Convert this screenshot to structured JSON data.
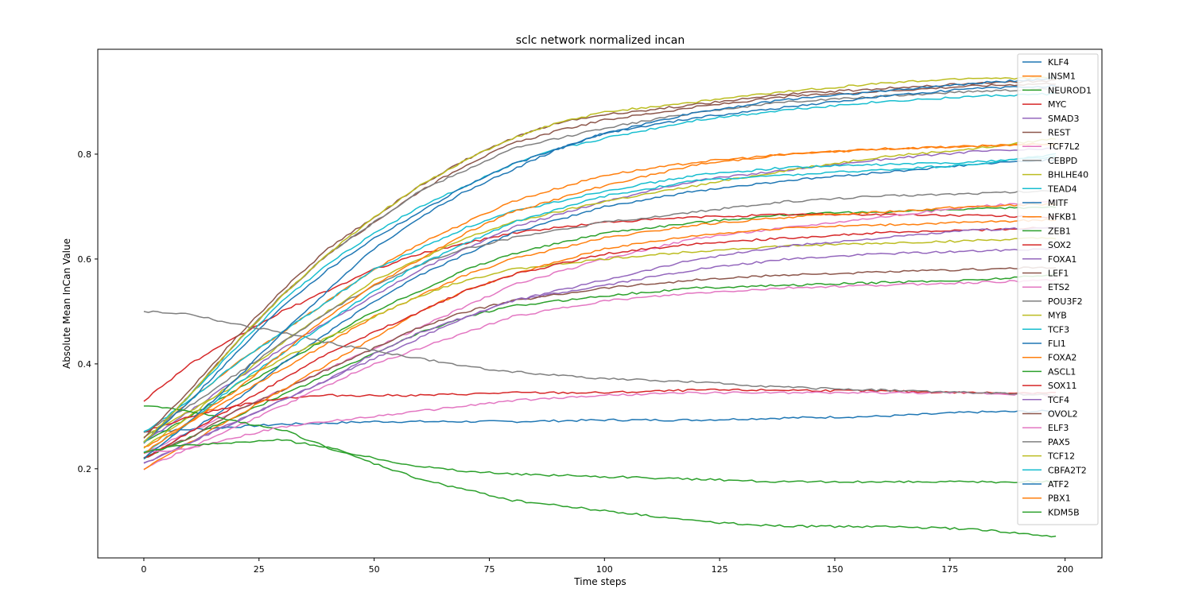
{
  "chart_data": {
    "type": "line",
    "title": "sclc network normalized incan",
    "xlabel": "Time steps",
    "ylabel": "Absolute Mean InCan Value",
    "xlim": [
      -10,
      208
    ],
    "ylim": [
      0.03,
      1.0
    ],
    "xticks": [
      0,
      25,
      50,
      75,
      100,
      125,
      150,
      175,
      200
    ],
    "yticks": [
      0.2,
      0.4,
      0.6,
      0.8
    ],
    "grid": false,
    "legend_position": "top-right",
    "series": [
      {
        "name": "KLF4",
        "color": "#1f77b4",
        "x": [
          0,
          10,
          20,
          30,
          40,
          50,
          60,
          80,
          100,
          120,
          140,
          160,
          180,
          198
        ],
        "values": [
          0.27,
          0.275,
          0.28,
          0.285,
          0.287,
          0.29,
          0.29,
          0.29,
          0.293,
          0.293,
          0.297,
          0.3,
          0.308,
          0.31
        ]
      },
      {
        "name": "INSM1",
        "color": "#ff7f0e",
        "x": [
          0,
          10,
          20,
          30,
          40,
          50,
          60,
          70,
          80,
          100,
          120,
          140,
          160,
          180,
          198
        ],
        "values": [
          0.25,
          0.33,
          0.4,
          0.46,
          0.52,
          0.58,
          0.63,
          0.67,
          0.71,
          0.76,
          0.785,
          0.8,
          0.81,
          0.815,
          0.82
        ]
      },
      {
        "name": "NEUROD1",
        "color": "#2ca02c",
        "x": [
          0,
          10,
          20,
          30,
          40,
          50,
          60,
          70,
          80,
          100,
          120,
          140,
          160,
          180,
          198
        ],
        "values": [
          0.25,
          0.3,
          0.35,
          0.4,
          0.45,
          0.5,
          0.54,
          0.58,
          0.61,
          0.65,
          0.67,
          0.685,
          0.69,
          0.695,
          0.7
        ]
      },
      {
        "name": "MYC",
        "color": "#d62728",
        "x": [
          0,
          10,
          20,
          30,
          40,
          50,
          60,
          70,
          80,
          100,
          120,
          140,
          160,
          180,
          198
        ],
        "values": [
          0.33,
          0.4,
          0.45,
          0.5,
          0.54,
          0.58,
          0.61,
          0.63,
          0.65,
          0.67,
          0.68,
          0.685,
          0.685,
          0.683,
          0.68
        ]
      },
      {
        "name": "SMAD3",
        "color": "#9467bd",
        "x": [
          0,
          10,
          20,
          30,
          40,
          50,
          60,
          70,
          80,
          100,
          120,
          140,
          160,
          180,
          198
        ],
        "values": [
          0.25,
          0.31,
          0.37,
          0.43,
          0.48,
          0.53,
          0.58,
          0.62,
          0.66,
          0.71,
          0.75,
          0.77,
          0.79,
          0.805,
          0.81
        ]
      },
      {
        "name": "REST",
        "color": "#8c564b",
        "x": [
          0,
          10,
          20,
          30,
          40,
          50,
          60,
          70,
          80,
          90,
          100,
          120,
          140,
          160,
          180,
          198
        ],
        "values": [
          0.25,
          0.34,
          0.44,
          0.53,
          0.61,
          0.67,
          0.73,
          0.78,
          0.82,
          0.845,
          0.865,
          0.89,
          0.91,
          0.92,
          0.93,
          0.935
        ]
      },
      {
        "name": "TCF7L2",
        "color": "#e377c2",
        "x": [
          0,
          10,
          20,
          30,
          40,
          50,
          60,
          70,
          80,
          100,
          120,
          140,
          160,
          180,
          198
        ],
        "values": [
          0.23,
          0.27,
          0.31,
          0.35,
          0.39,
          0.43,
          0.47,
          0.51,
          0.55,
          0.6,
          0.64,
          0.66,
          0.68,
          0.7,
          0.71
        ]
      },
      {
        "name": "CEBPD",
        "color": "#7f7f7f",
        "x": [
          0,
          10,
          20,
          30,
          40,
          50,
          60,
          70,
          80,
          100,
          120,
          140,
          160,
          180,
          198
        ],
        "values": [
          0.25,
          0.34,
          0.44,
          0.53,
          0.61,
          0.67,
          0.73,
          0.77,
          0.81,
          0.85,
          0.88,
          0.9,
          0.91,
          0.92,
          0.925
        ]
      },
      {
        "name": "BHLHE40",
        "color": "#bcbd22",
        "x": [
          0,
          10,
          20,
          30,
          40,
          50,
          60,
          70,
          80,
          100,
          120,
          140,
          160,
          180,
          198
        ],
        "values": [
          0.24,
          0.3,
          0.37,
          0.44,
          0.5,
          0.56,
          0.6,
          0.64,
          0.67,
          0.71,
          0.74,
          0.77,
          0.795,
          0.81,
          0.83
        ]
      },
      {
        "name": "TEAD4",
        "color": "#17becf",
        "x": [
          0,
          10,
          20,
          30,
          40,
          50,
          60,
          70,
          80,
          90,
          100,
          120,
          140,
          160,
          180,
          198
        ],
        "values": [
          0.25,
          0.34,
          0.43,
          0.52,
          0.59,
          0.65,
          0.7,
          0.74,
          0.78,
          0.81,
          0.83,
          0.865,
          0.885,
          0.9,
          0.91,
          0.915
        ]
      },
      {
        "name": "MITF",
        "color": "#1f77b4",
        "x": [
          0,
          10,
          20,
          30,
          40,
          50,
          60,
          70,
          80,
          100,
          120,
          140,
          160,
          180,
          198
        ],
        "values": [
          0.22,
          0.27,
          0.33,
          0.4,
          0.46,
          0.52,
          0.57,
          0.61,
          0.65,
          0.7,
          0.73,
          0.75,
          0.765,
          0.78,
          0.79
        ]
      },
      {
        "name": "NFKB1",
        "color": "#ff7f0e",
        "x": [
          0,
          10,
          20,
          30,
          40,
          50,
          60,
          70,
          80,
          100,
          120,
          140,
          160,
          180,
          198
        ],
        "values": [
          0.24,
          0.29,
          0.34,
          0.39,
          0.44,
          0.49,
          0.53,
          0.57,
          0.6,
          0.64,
          0.665,
          0.68,
          0.69,
          0.7,
          0.705
        ]
      },
      {
        "name": "ZEB1",
        "color": "#2ca02c",
        "x": [
          0,
          10,
          20,
          30,
          40,
          50,
          60,
          70,
          80,
          100,
          120,
          140,
          160,
          180,
          198
        ],
        "values": [
          0.22,
          0.26,
          0.3,
          0.34,
          0.38,
          0.42,
          0.46,
          0.49,
          0.51,
          0.53,
          0.545,
          0.55,
          0.555,
          0.56,
          0.57
        ]
      },
      {
        "name": "SOX2",
        "color": "#d62728",
        "x": [
          0,
          10,
          20,
          30,
          40,
          60,
          80,
          100,
          120,
          140,
          160,
          180,
          198
        ],
        "values": [
          0.27,
          0.3,
          0.32,
          0.335,
          0.34,
          0.34,
          0.345,
          0.345,
          0.35,
          0.35,
          0.348,
          0.345,
          0.345
        ]
      },
      {
        "name": "FOXA1",
        "color": "#9467bd",
        "x": [
          0,
          10,
          20,
          30,
          40,
          50,
          60,
          70,
          80,
          100,
          120,
          140,
          160,
          180,
          198
        ],
        "values": [
          0.21,
          0.25,
          0.29,
          0.33,
          0.37,
          0.41,
          0.45,
          0.49,
          0.52,
          0.55,
          0.58,
          0.6,
          0.61,
          0.615,
          0.62
        ]
      },
      {
        "name": "LEF1",
        "color": "#8c564b",
        "x": [
          0,
          10,
          20,
          30,
          40,
          50,
          60,
          70,
          80,
          100,
          120,
          140,
          160,
          180,
          198
        ],
        "values": [
          0.22,
          0.26,
          0.31,
          0.35,
          0.39,
          0.43,
          0.47,
          0.5,
          0.52,
          0.545,
          0.56,
          0.57,
          0.575,
          0.58,
          0.585
        ]
      },
      {
        "name": "ETS2",
        "color": "#e377c2",
        "x": [
          0,
          10,
          20,
          30,
          40,
          50,
          60,
          70,
          80,
          100,
          120,
          140,
          160,
          180,
          198
        ],
        "values": [
          0.2,
          0.24,
          0.28,
          0.32,
          0.36,
          0.4,
          0.43,
          0.46,
          0.49,
          0.52,
          0.535,
          0.545,
          0.55,
          0.555,
          0.56
        ]
      },
      {
        "name": "POU3F2",
        "color": "#7f7f7f",
        "x": [
          0,
          10,
          20,
          30,
          40,
          50,
          60,
          70,
          80,
          100,
          120,
          140,
          160,
          180,
          198
        ],
        "values": [
          0.27,
          0.32,
          0.38,
          0.44,
          0.5,
          0.55,
          0.59,
          0.62,
          0.64,
          0.67,
          0.69,
          0.71,
          0.72,
          0.725,
          0.73
        ]
      },
      {
        "name": "MYB",
        "color": "#bcbd22",
        "x": [
          0,
          10,
          20,
          30,
          40,
          50,
          60,
          70,
          80,
          100,
          120,
          140,
          160,
          180,
          198
        ],
        "values": [
          0.26,
          0.31,
          0.36,
          0.41,
          0.45,
          0.49,
          0.53,
          0.56,
          0.58,
          0.6,
          0.615,
          0.625,
          0.63,
          0.635,
          0.64
        ]
      },
      {
        "name": "TCF3",
        "color": "#17becf",
        "x": [
          0,
          10,
          20,
          30,
          40,
          50,
          60,
          70,
          80,
          100,
          120,
          140,
          160,
          180,
          198
        ],
        "values": [
          0.27,
          0.33,
          0.4,
          0.46,
          0.52,
          0.58,
          0.62,
          0.66,
          0.69,
          0.73,
          0.76,
          0.775,
          0.78,
          0.785,
          0.795
        ]
      },
      {
        "name": "FLI1",
        "color": "#1f77b4",
        "x": [
          0,
          10,
          20,
          30,
          40,
          50,
          60,
          70,
          80,
          90,
          100,
          120,
          140,
          160,
          180,
          198
        ],
        "values": [
          0.25,
          0.33,
          0.42,
          0.51,
          0.58,
          0.64,
          0.69,
          0.74,
          0.78,
          0.81,
          0.84,
          0.87,
          0.89,
          0.91,
          0.925,
          0.93
        ]
      },
      {
        "name": "FOXA2",
        "color": "#ff7f0e",
        "x": [
          0,
          10,
          20,
          30,
          40,
          50,
          60,
          70,
          80,
          100,
          120,
          140,
          160,
          180,
          198
        ],
        "values": [
          0.2,
          0.25,
          0.3,
          0.35,
          0.4,
          0.45,
          0.5,
          0.54,
          0.57,
          0.62,
          0.645,
          0.66,
          0.665,
          0.67,
          0.675
        ]
      },
      {
        "name": "ASCL1",
        "color": "#2ca02c",
        "x": [
          0,
          10,
          20,
          30,
          40,
          50,
          60,
          70,
          80,
          100,
          120,
          140,
          160,
          180,
          198
        ],
        "values": [
          0.32,
          0.31,
          0.29,
          0.275,
          0.24,
          0.21,
          0.18,
          0.16,
          0.14,
          0.12,
          0.1,
          0.09,
          0.09,
          0.085,
          0.07
        ]
      },
      {
        "name": "SOX11",
        "color": "#d62728",
        "x": [
          0,
          10,
          20,
          30,
          40,
          50,
          60,
          70,
          80,
          100,
          120,
          140,
          160,
          180,
          198
        ],
        "values": [
          0.22,
          0.27,
          0.32,
          0.37,
          0.42,
          0.46,
          0.5,
          0.54,
          0.57,
          0.61,
          0.63,
          0.64,
          0.65,
          0.655,
          0.66
        ]
      },
      {
        "name": "TCF4",
        "color": "#9467bd",
        "x": [
          0,
          10,
          20,
          30,
          40,
          50,
          60,
          70,
          80,
          100,
          120,
          140,
          160,
          180,
          198
        ],
        "values": [
          0.21,
          0.25,
          0.29,
          0.33,
          0.37,
          0.42,
          0.46,
          0.49,
          0.52,
          0.56,
          0.6,
          0.625,
          0.64,
          0.655,
          0.66
        ]
      },
      {
        "name": "OVOL2",
        "color": "#8c564b",
        "x": [
          0,
          10,
          20,
          30,
          40,
          50,
          60,
          70,
          80,
          90,
          100,
          120,
          140,
          160,
          180,
          198
        ],
        "values": [
          0.26,
          0.35,
          0.45,
          0.54,
          0.62,
          0.68,
          0.74,
          0.79,
          0.83,
          0.86,
          0.875,
          0.895,
          0.915,
          0.925,
          0.935,
          0.94
        ]
      },
      {
        "name": "ELF3",
        "color": "#e377c2",
        "x": [
          0,
          10,
          20,
          30,
          40,
          50,
          60,
          80,
          100,
          120,
          140,
          160,
          180,
          198
        ],
        "values": [
          0.23,
          0.24,
          0.26,
          0.28,
          0.29,
          0.3,
          0.31,
          0.33,
          0.34,
          0.345,
          0.345,
          0.345,
          0.345,
          0.34
        ]
      },
      {
        "name": "PAX5",
        "color": "#7f7f7f",
        "x": [
          0,
          10,
          20,
          30,
          40,
          50,
          60,
          70,
          80,
          90,
          100,
          120,
          140,
          160,
          180,
          198
        ],
        "values": [
          0.5,
          0.495,
          0.475,
          0.46,
          0.44,
          0.425,
          0.41,
          0.395,
          0.385,
          0.378,
          0.372,
          0.365,
          0.355,
          0.35,
          0.345,
          0.34
        ]
      },
      {
        "name": "TCF12",
        "color": "#bcbd22",
        "x": [
          0,
          10,
          20,
          30,
          40,
          50,
          60,
          70,
          80,
          90,
          100,
          120,
          140,
          160,
          180,
          198
        ],
        "values": [
          0.25,
          0.34,
          0.44,
          0.53,
          0.61,
          0.68,
          0.74,
          0.79,
          0.83,
          0.86,
          0.88,
          0.9,
          0.92,
          0.935,
          0.945,
          0.945
        ]
      },
      {
        "name": "CBFA2T2",
        "color": "#17becf",
        "x": [
          0,
          10,
          20,
          30,
          40,
          50,
          60,
          70,
          80,
          100,
          120,
          140,
          160,
          180,
          198
        ],
        "values": [
          0.23,
          0.29,
          0.36,
          0.42,
          0.48,
          0.54,
          0.59,
          0.63,
          0.67,
          0.72,
          0.75,
          0.76,
          0.77,
          0.78,
          0.8
        ]
      },
      {
        "name": "ATF2",
        "color": "#1f77b4",
        "x": [
          0,
          10,
          20,
          30,
          40,
          50,
          60,
          70,
          80,
          90,
          100,
          120,
          140,
          160,
          180,
          198
        ],
        "values": [
          0.22,
          0.29,
          0.37,
          0.46,
          0.54,
          0.62,
          0.68,
          0.73,
          0.77,
          0.81,
          0.84,
          0.88,
          0.905,
          0.92,
          0.935,
          0.945
        ]
      },
      {
        "name": "PBX1",
        "color": "#ff7f0e",
        "x": [
          0,
          10,
          20,
          30,
          40,
          50,
          60,
          70,
          80,
          100,
          120,
          140,
          160,
          180,
          198
        ],
        "values": [
          0.23,
          0.29,
          0.35,
          0.42,
          0.49,
          0.55,
          0.6,
          0.65,
          0.69,
          0.74,
          0.78,
          0.8,
          0.81,
          0.815,
          0.82
        ]
      },
      {
        "name": "KDM5B",
        "color": "#2ca02c",
        "x": [
          0,
          5,
          10,
          20,
          30,
          40,
          50,
          60,
          70,
          80,
          100,
          120,
          140,
          160,
          180,
          198
        ],
        "values": [
          0.23,
          0.24,
          0.245,
          0.25,
          0.255,
          0.24,
          0.22,
          0.205,
          0.195,
          0.19,
          0.185,
          0.18,
          0.175,
          0.175,
          0.175,
          0.175
        ]
      }
    ]
  }
}
